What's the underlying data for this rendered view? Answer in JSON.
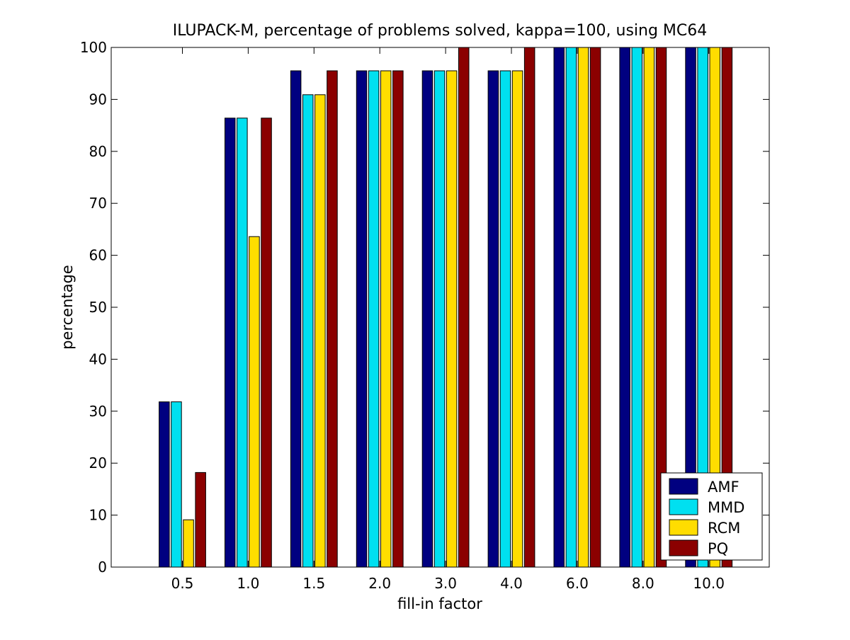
{
  "chart_data": {
    "type": "bar",
    "title": "ILUPACK-M, percentage of problems solved, kappa=100, using MC64",
    "xlabel": "fill-in factor",
    "ylabel": "percentage",
    "categories": [
      "0.5",
      "1.0",
      "1.5",
      "2.0",
      "3.0",
      "4.0",
      "6.0",
      "8.0",
      "10.0"
    ],
    "ylim": [
      0,
      100
    ],
    "yticks": [
      0,
      10,
      20,
      30,
      40,
      50,
      60,
      70,
      80,
      90,
      100
    ],
    "grid": false,
    "legend_position": "bottom-right",
    "series": [
      {
        "name": "AMF",
        "color": "#000080",
        "values": [
          31.8,
          86.4,
          95.5,
          95.5,
          95.5,
          95.5,
          100,
          100,
          100
        ]
      },
      {
        "name": "MMD",
        "color": "#00E0F0",
        "values": [
          31.8,
          86.4,
          90.9,
          95.5,
          95.5,
          95.5,
          100,
          100,
          100
        ]
      },
      {
        "name": "RCM",
        "color": "#FFDD00",
        "values": [
          9.1,
          63.6,
          90.9,
          95.5,
          95.5,
          95.5,
          100,
          100,
          100
        ]
      },
      {
        "name": "PQ",
        "color": "#8B0000",
        "values": [
          18.2,
          86.4,
          95.5,
          95.5,
          100,
          100,
          100,
          100,
          100
        ]
      }
    ]
  }
}
